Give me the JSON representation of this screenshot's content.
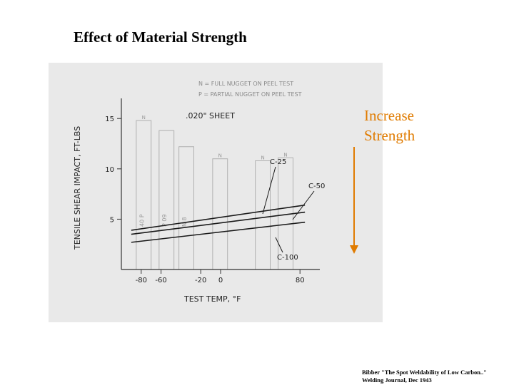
{
  "slide": {
    "title": "Effect of Material Strength",
    "annotation_lines": [
      "Increase",
      "Strength"
    ],
    "citation_lines": [
      "Bibber \"The Spot Weldability of Low Carbon..\"",
      "Welding Journal, Dec 1943"
    ],
    "annotation_color": "#e07b00",
    "arrow_color": "#e07b00"
  },
  "chart_data": {
    "type": "line",
    "panel_label": ".020\" SHEET",
    "xlabel": "TEST TEMP, °F",
    "ylabel": "TENSILE SHEAR IMPACT, FT-LBS",
    "x_ticks": [
      -80,
      -60,
      -20,
      0,
      80
    ],
    "y_ticks": [
      5,
      10,
      15
    ],
    "xlim": [
      -100,
      100
    ],
    "ylim": [
      0,
      17
    ],
    "legend_text": [
      "N = FULL NUGGET ON PEEL TEST",
      "P = PARTIAL NUGGET ON PEEL TEST"
    ],
    "bar_background": [
      {
        "x_from": -85,
        "x_to": -70,
        "value": 14.8,
        "label": "N",
        "text": "40 P"
      },
      {
        "x_from": -62,
        "x_to": -47,
        "value": 13.8,
        "label": "",
        "text": "P 09"
      },
      {
        "x_from": -42,
        "x_to": -27,
        "value": 12.2,
        "label": "",
        "text": "N 8"
      },
      {
        "x_from": -8,
        "x_to": 7,
        "value": 11.0,
        "label": "N",
        "text": ""
      },
      {
        "x_from": 35,
        "x_to": 50,
        "value": 10.8,
        "label": "N",
        "text": ""
      },
      {
        "x_from": 58,
        "x_to": 73,
        "value": 11.1,
        "label": "N",
        "text": ""
      }
    ],
    "series": [
      {
        "name": "C-25",
        "x": [
          -90,
          85
        ],
        "y": [
          3.9,
          6.4
        ]
      },
      {
        "name": "C-50",
        "x": [
          -90,
          85
        ],
        "y": [
          3.5,
          5.7
        ]
      },
      {
        "name": "C-100",
        "x": [
          -90,
          85
        ],
        "y": [
          2.7,
          4.7
        ]
      }
    ]
  }
}
